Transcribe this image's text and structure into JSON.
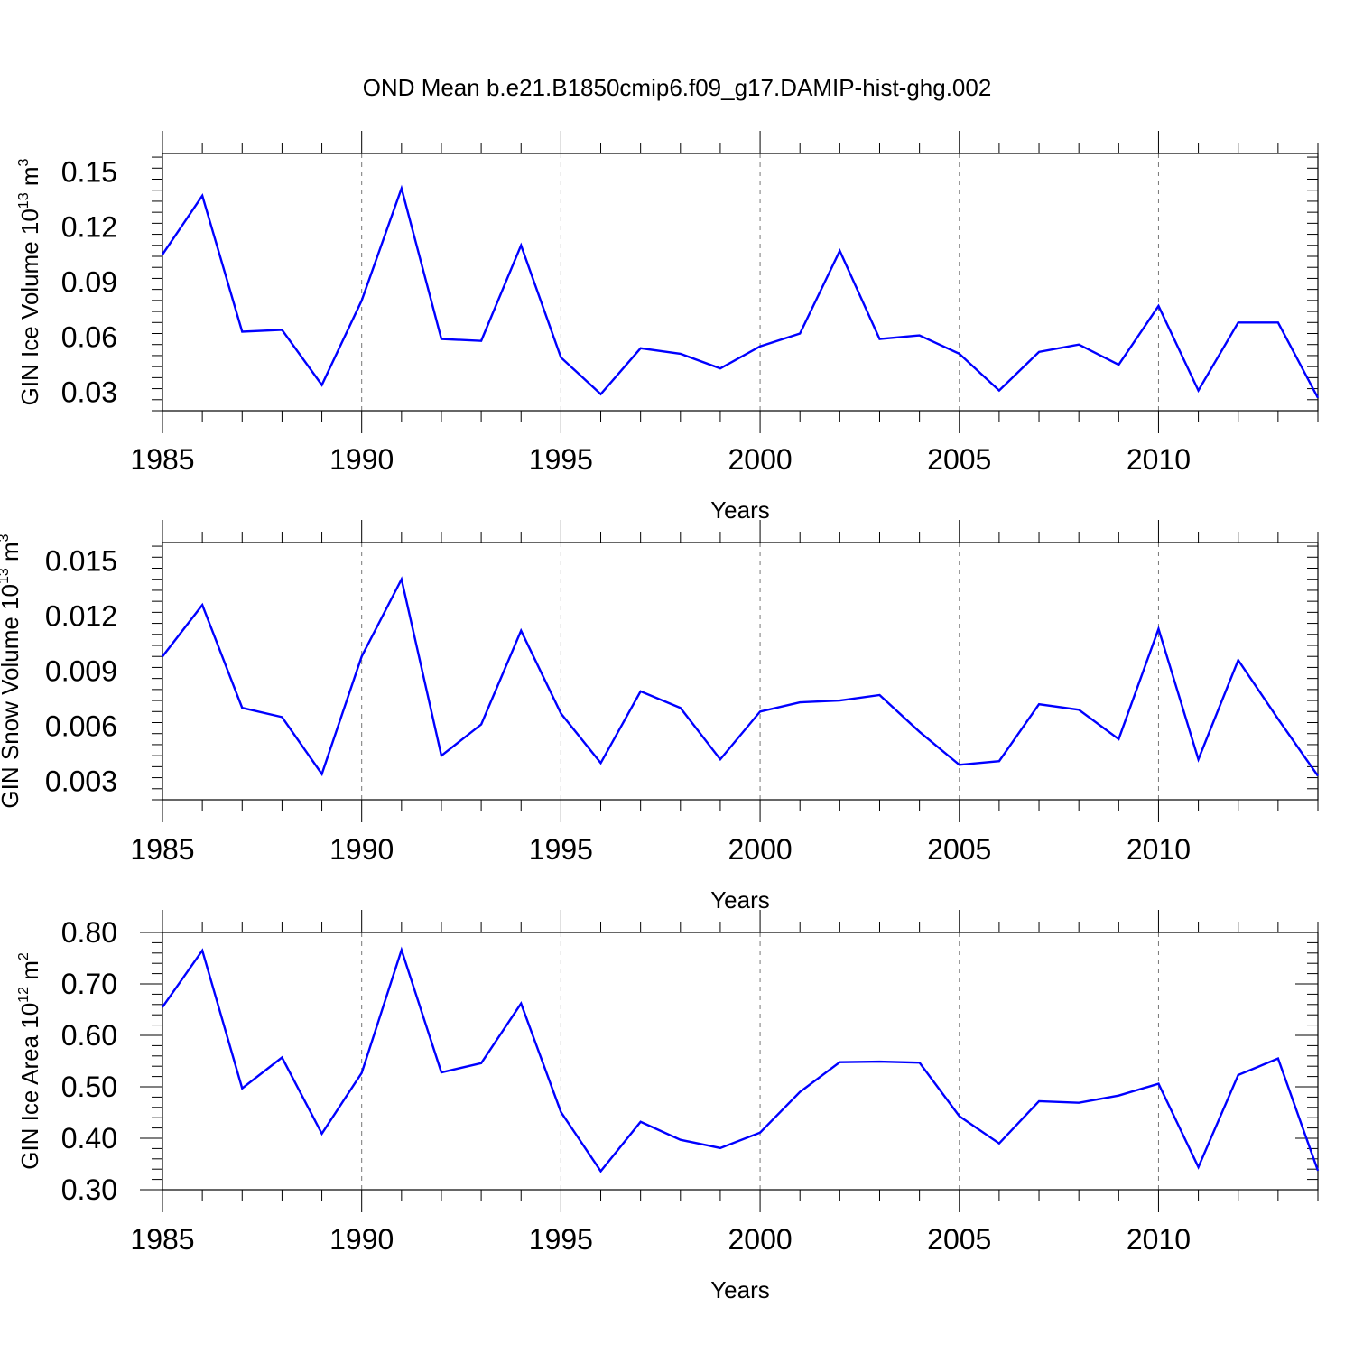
{
  "chart_data": [
    {
      "type": "line",
      "title": "OND Mean b.e21.B1850cmip6.f09_g17.DAMIP-hist-ghg.002",
      "xlabel": "Years",
      "ylabel_main": "GIN Ice Volume 10",
      "ylabel_exp": "13",
      "ylabel_unit": " m",
      "ylabel_unit_exp": "3",
      "xlim": [
        1985,
        2014
      ],
      "ylim": [
        0.02,
        0.16
      ],
      "x_ticks": [
        1985,
        1990,
        1995,
        2000,
        2005,
        2010
      ],
      "x_tick_labels": [
        "1985",
        "1990",
        "1995",
        "2000",
        "2005",
        "2010"
      ],
      "y_ticks": [
        0.03,
        0.06,
        0.09,
        0.12,
        0.15
      ],
      "y_tick_labels": [
        "0.03",
        "0.06",
        "0.09",
        "0.12",
        "0.15"
      ],
      "grid": "vertical dashed at labelled years",
      "line_color": "#0000ff",
      "series": [
        {
          "name": "GIN Ice Volume",
          "x": [
            1985,
            1986,
            1987,
            1988,
            1989,
            1990,
            1991,
            1992,
            1993,
            1994,
            1995,
            1996,
            1997,
            1998,
            1999,
            2000,
            2001,
            2002,
            2003,
            2004,
            2005,
            2006,
            2007,
            2008,
            2009,
            2010,
            2011,
            2012,
            2013,
            2014
          ],
          "values": [
            0.105,
            0.137,
            0.063,
            0.064,
            0.034,
            0.08,
            0.141,
            0.059,
            0.058,
            0.11,
            0.049,
            0.029,
            0.054,
            0.051,
            0.043,
            0.055,
            0.062,
            0.107,
            0.059,
            0.061,
            0.051,
            0.031,
            0.052,
            0.056,
            0.045,
            0.077,
            0.031,
            0.068,
            0.068,
            0.027
          ]
        }
      ]
    },
    {
      "type": "line",
      "title": "",
      "xlabel": "Years",
      "ylabel_main": "GIN Snow Volume 10",
      "ylabel_exp": "13",
      "ylabel_unit": " m",
      "ylabel_unit_exp": "3",
      "xlim": [
        1985,
        2014
      ],
      "ylim": [
        0.002,
        0.016
      ],
      "x_ticks": [
        1985,
        1990,
        1995,
        2000,
        2005,
        2010
      ],
      "x_tick_labels": [
        "1985",
        "1990",
        "1995",
        "2000",
        "2005",
        "2010"
      ],
      "y_ticks": [
        0.003,
        0.006,
        0.009,
        0.012,
        0.015
      ],
      "y_tick_labels": [
        "0.003",
        "0.006",
        "0.009",
        "0.012",
        "0.015"
      ],
      "grid": "vertical dashed at labelled years",
      "line_color": "#0000ff",
      "series": [
        {
          "name": "GIN Snow Volume",
          "x": [
            1985,
            1986,
            1987,
            1988,
            1989,
            1990,
            1991,
            1992,
            1993,
            1994,
            1995,
            1996,
            1997,
            1998,
            1999,
            2000,
            2001,
            2002,
            2003,
            2004,
            2005,
            2006,
            2007,
            2008,
            2009,
            2010,
            2011,
            2012,
            2013,
            2014
          ],
          "values": [
            0.0098,
            0.0126,
            0.007,
            0.0065,
            0.0034,
            0.0098,
            0.014,
            0.0044,
            0.0061,
            0.0112,
            0.0067,
            0.004,
            0.0079,
            0.007,
            0.0042,
            0.0068,
            0.0073,
            0.0074,
            0.0077,
            0.0057,
            0.0039,
            0.0041,
            0.0072,
            0.0069,
            0.0053,
            0.0113,
            0.0042,
            0.0096,
            0.0064,
            0.0033
          ]
        }
      ]
    },
    {
      "type": "line",
      "title": "",
      "xlabel": "Years",
      "ylabel_main": "GIN Ice Area 10",
      "ylabel_exp": "12",
      "ylabel_unit": " m",
      "ylabel_unit_exp": "2",
      "xlim": [
        1985,
        2014
      ],
      "ylim": [
        0.3,
        0.8
      ],
      "x_ticks": [
        1985,
        1990,
        1995,
        2000,
        2005,
        2010
      ],
      "x_tick_labels": [
        "1985",
        "1990",
        "1995",
        "2000",
        "2005",
        "2010"
      ],
      "y_ticks": [
        0.3,
        0.4,
        0.5,
        0.6,
        0.7,
        0.8
      ],
      "y_tick_labels": [
        "0.30",
        "0.40",
        "0.50",
        "0.60",
        "0.70",
        "0.80"
      ],
      "grid": "vertical dashed at labelled years",
      "line_color": "#0000ff",
      "series": [
        {
          "name": "GIN Ice Area",
          "x": [
            1985,
            1986,
            1987,
            1988,
            1989,
            1990,
            1991,
            1992,
            1993,
            1994,
            1995,
            1996,
            1997,
            1998,
            1999,
            2000,
            2001,
            2002,
            2003,
            2004,
            2005,
            2006,
            2007,
            2008,
            2009,
            2010,
            2011,
            2012,
            2013,
            2014
          ],
          "values": [
            0.655,
            0.765,
            0.497,
            0.557,
            0.409,
            0.527,
            0.766,
            0.528,
            0.546,
            0.662,
            0.451,
            0.336,
            0.432,
            0.397,
            0.381,
            0.411,
            0.49,
            0.548,
            0.549,
            0.547,
            0.443,
            0.39,
            0.472,
            0.469,
            0.483,
            0.506,
            0.344,
            0.523,
            0.555,
            0.337
          ]
        }
      ]
    }
  ]
}
